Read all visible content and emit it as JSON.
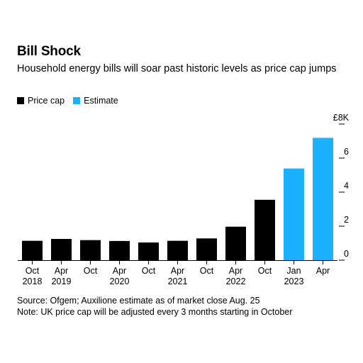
{
  "header": {
    "title": "Bill Shock",
    "subtitle": "Household energy bills will soar past historic levels as price cap jumps"
  },
  "legend": [
    {
      "label": "Price cap",
      "color": "#000000"
    },
    {
      "label": "Estimate",
      "color": "#1ab2ff"
    }
  ],
  "chart_data": {
    "type": "bar",
    "unit_label": "£8K",
    "categories": [
      [
        "Oct",
        "2018"
      ],
      [
        "Apr",
        "2019"
      ],
      [
        "Oct",
        ""
      ],
      [
        "Apr",
        "2020"
      ],
      [
        "Oct",
        ""
      ],
      [
        "Apr",
        "2021"
      ],
      [
        "Oct",
        ""
      ],
      [
        "Apr",
        "2022"
      ],
      [
        "Oct",
        ""
      ],
      [
        "Jan",
        "2023"
      ],
      [
        "Apr",
        ""
      ]
    ],
    "values": [
      1.14,
      1.25,
      1.18,
      1.13,
      1.04,
      1.14,
      1.28,
      1.97,
      3.55,
      5.39,
      7.19
    ],
    "series_kind": [
      "Price cap",
      "Price cap",
      "Price cap",
      "Price cap",
      "Price cap",
      "Price cap",
      "Price cap",
      "Price cap",
      "Price cap",
      "Estimate",
      "Estimate"
    ],
    "yticks": [
      0,
      2,
      4,
      6,
      8
    ],
    "ytick_labels": [
      "0",
      "2",
      "4",
      "6",
      "£8K"
    ],
    "ylim": [
      0,
      8
    ],
    "grid": false,
    "legend_position": "top-left"
  },
  "footer": {
    "source": "Source: Ofgem; Auxilione estimate as of market close Aug. 25",
    "note": "Note: UK price cap will be adjusted every 3 months starting in October"
  }
}
